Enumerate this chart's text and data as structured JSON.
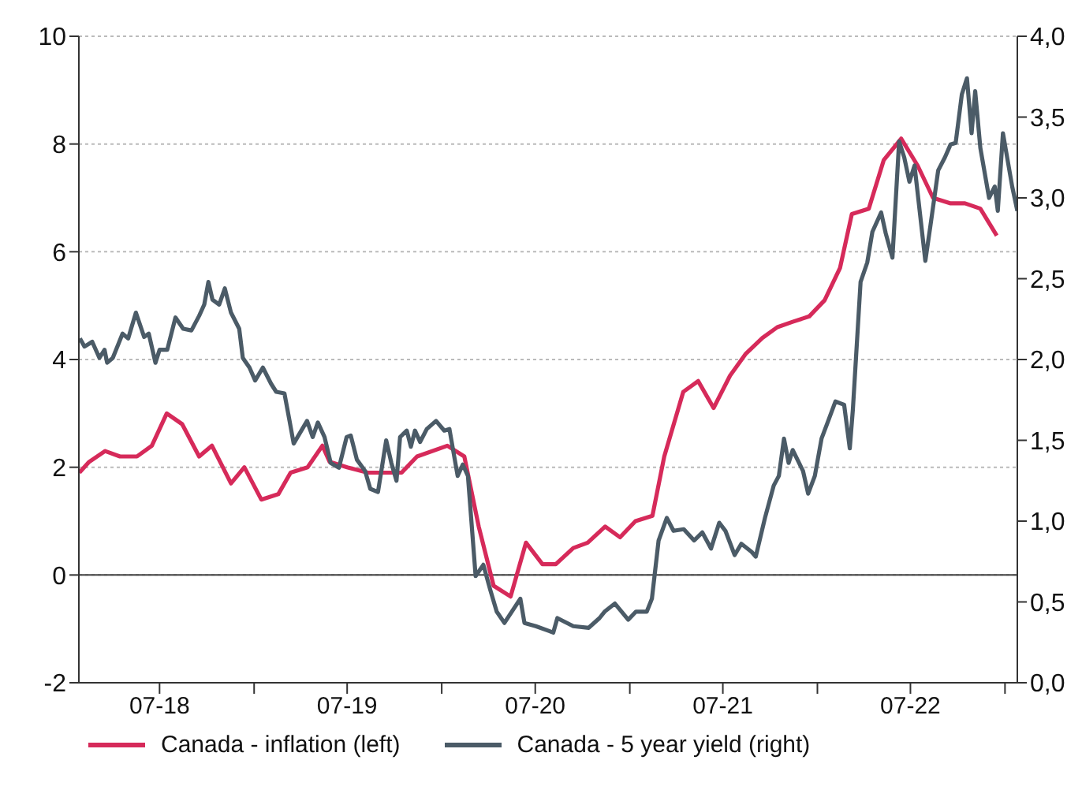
{
  "chart_data": {
    "type": "line",
    "xlim": [
      "2018-01-25",
      "2023-01-25"
    ],
    "xticks": [
      {
        "value": "2018-07-01",
        "label": "07-18"
      },
      {
        "value": "2019-01-01",
        "label": null
      },
      {
        "value": "2019-07-01",
        "label": "07-19"
      },
      {
        "value": "2020-01-01",
        "label": null
      },
      {
        "value": "2020-07-01",
        "label": "07-20"
      },
      {
        "value": "2021-01-01",
        "label": null
      },
      {
        "value": "2021-07-01",
        "label": "07-21"
      },
      {
        "value": "2022-01-01",
        "label": null
      },
      {
        "value": "2022-07-01",
        "label": "07-22"
      },
      {
        "value": "2023-01-01",
        "label": null
      }
    ],
    "ylim": [
      -2,
      10
    ],
    "yticks": [
      -2,
      0,
      2,
      4,
      6,
      8,
      10
    ],
    "y2lim": [
      0,
      4
    ],
    "y2ticks": [
      {
        "value": 0,
        "label": "0,0"
      },
      {
        "value": 0.5,
        "label": "0,5"
      },
      {
        "value": 1,
        "label": "1,0"
      },
      {
        "value": 1.5,
        "label": "1,5"
      },
      {
        "value": 2,
        "label": "2,0"
      },
      {
        "value": 2.5,
        "label": "2,5"
      },
      {
        "value": 3,
        "label": "3,0"
      },
      {
        "value": 3.5,
        "label": "3,5"
      },
      {
        "value": 4,
        "label": "4,0"
      }
    ],
    "grid": "y",
    "legend": "bottom",
    "marker": "none",
    "line_style": "solid",
    "ref_lines": [
      {
        "axis": "y",
        "value": 0,
        "color": "#404040"
      }
    ],
    "series": [
      {
        "name": "Canada - inflation (left)",
        "color": "#d62a5a",
        "x": [
          "2018-01-26",
          "2018-02-14",
          "2018-03-17",
          "2018-04-15",
          "2018-05-18",
          "2018-06-16",
          "2018-07-15",
          "2018-08-14",
          "2018-09-16",
          "2018-10-11",
          "2018-11-17",
          "2018-12-13",
          "2019-01-15",
          "2019-02-17",
          "2019-03-13",
          "2019-04-15",
          "2019-05-14",
          "2019-05-28",
          "2019-07-01",
          "2019-08-10",
          "2019-09-20",
          "2019-10-15",
          "2019-11-14",
          "2020-01-12",
          "2020-02-14",
          "2020-03-13",
          "2020-04-11",
          "2020-05-14",
          "2020-06-13",
          "2020-07-15",
          "2020-08-10",
          "2020-09-13",
          "2020-10-11",
          "2020-11-14",
          "2020-12-13",
          "2021-01-12",
          "2021-02-14",
          "2021-03-09",
          "2021-04-15",
          "2021-05-14",
          "2021-06-13",
          "2021-07-15",
          "2021-08-14",
          "2021-09-16",
          "2021-10-15",
          "2021-11-14",
          "2021-12-16",
          "2022-01-15",
          "2022-02-14",
          "2022-03-09",
          "2022-04-11",
          "2022-05-10",
          "2022-06-13",
          "2022-07-15",
          "2022-08-14",
          "2022-09-16",
          "2022-10-15",
          "2022-11-14",
          "2022-12-16"
        ],
        "values": [
          1.9,
          2.1,
          2.3,
          2.2,
          2.2,
          2.4,
          3.0,
          2.8,
          2.2,
          2.4,
          1.7,
          2.0,
          1.4,
          1.5,
          1.9,
          2.0,
          2.4,
          2.1,
          2.0,
          1.9,
          1.9,
          1.9,
          2.2,
          2.4,
          2.2,
          0.9,
          -0.2,
          -0.4,
          0.6,
          0.2,
          0.2,
          0.5,
          0.6,
          0.9,
          0.7,
          1.0,
          1.1,
          2.2,
          3.4,
          3.6,
          3.1,
          3.7,
          4.1,
          4.4,
          4.6,
          4.7,
          4.8,
          5.1,
          5.7,
          6.7,
          6.8,
          7.7,
          8.1,
          7.6,
          7.0,
          6.9,
          6.9,
          6.8,
          6.3
        ]
      },
      {
        "name": "Canada - 5 year yield (right)",
        "color": "#4b5b67",
        "axis": "y2",
        "x": [
          "2018-01-27",
          "2018-02-05",
          "2018-02-20",
          "2018-03-06",
          "2018-03-16",
          "2018-03-21",
          "2018-04-01",
          "2018-04-20",
          "2018-05-01",
          "2018-05-16",
          "2018-06-01",
          "2018-06-10",
          "2018-06-23",
          "2018-07-01",
          "2018-07-16",
          "2018-08-01",
          "2018-08-16",
          "2018-09-01",
          "2018-09-16",
          "2018-09-26",
          "2018-10-04",
          "2018-10-12",
          "2018-10-25",
          "2018-11-05",
          "2018-11-17",
          "2018-12-03",
          "2018-12-10",
          "2018-12-23",
          "2019-01-03",
          "2019-01-18",
          "2019-02-03",
          "2019-02-13",
          "2019-03-01",
          "2019-03-11",
          "2019-03-19",
          "2019-04-14",
          "2019-04-25",
          "2019-05-05",
          "2019-05-18",
          "2019-05-30",
          "2019-06-15",
          "2019-06-30",
          "2019-07-08",
          "2019-07-20",
          "2019-08-05",
          "2019-08-15",
          "2019-08-30",
          "2019-09-15",
          "2019-09-25",
          "2019-10-05",
          "2019-10-12",
          "2019-10-25",
          "2019-11-02",
          "2019-11-10",
          "2019-11-20",
          "2019-12-03",
          "2019-12-21",
          "2020-01-06",
          "2020-01-16",
          "2020-02-01",
          "2020-02-11",
          "2020-02-21",
          "2020-03-07",
          "2020-03-22",
          "2020-04-04",
          "2020-04-17",
          "2020-05-02",
          "2020-06-02",
          "2020-06-10",
          "2020-07-02",
          "2020-07-28",
          "2020-08-05",
          "2020-08-13",
          "2020-09-13",
          "2020-10-13",
          "2020-11-03",
          "2020-11-13",
          "2020-12-03",
          "2020-12-29",
          "2021-01-13",
          "2021-02-03",
          "2021-02-13",
          "2021-02-26",
          "2021-03-14",
          "2021-03-27",
          "2021-04-16",
          "2021-05-06",
          "2021-05-22",
          "2021-06-08",
          "2021-06-24",
          "2021-07-06",
          "2021-07-24",
          "2021-08-06",
          "2021-08-26",
          "2021-09-03",
          "2021-09-21",
          "2021-10-08",
          "2021-10-18",
          "2021-10-28",
          "2021-11-06",
          "2021-11-14",
          "2021-12-04",
          "2021-12-14",
          "2021-12-27",
          "2022-01-09",
          "2022-01-22",
          "2022-02-05",
          "2022-02-22",
          "2022-03-05",
          "2022-03-11",
          "2022-03-26",
          "2022-04-08",
          "2022-04-18",
          "2022-05-05",
          "2022-05-14",
          "2022-05-27",
          "2022-06-09",
          "2022-06-19",
          "2022-06-29",
          "2022-07-09",
          "2022-07-30",
          "2022-08-09",
          "2022-08-24",
          "2022-09-06",
          "2022-09-17",
          "2022-09-27",
          "2022-10-09",
          "2022-10-19",
          "2022-10-28",
          "2022-11-04",
          "2022-11-14",
          "2022-12-01",
          "2022-12-12",
          "2022-12-18",
          "2022-12-28",
          "2023-01-15",
          "2023-01-25"
        ],
        "values": [
          2.13,
          2.08,
          2.11,
          2.01,
          2.06,
          1.98,
          2.01,
          2.16,
          2.13,
          2.29,
          2.14,
          2.16,
          1.98,
          2.06,
          2.06,
          2.26,
          2.19,
          2.18,
          2.27,
          2.34,
          2.48,
          2.37,
          2.34,
          2.44,
          2.29,
          2.19,
          2.01,
          1.95,
          1.87,
          1.95,
          1.85,
          1.8,
          1.79,
          1.62,
          1.48,
          1.62,
          1.52,
          1.61,
          1.52,
          1.36,
          1.33,
          1.52,
          1.53,
          1.38,
          1.31,
          1.2,
          1.18,
          1.5,
          1.36,
          1.25,
          1.52,
          1.56,
          1.46,
          1.56,
          1.49,
          1.57,
          1.62,
          1.56,
          1.57,
          1.28,
          1.35,
          1.28,
          0.66,
          0.73,
          0.58,
          0.44,
          0.37,
          0.52,
          0.37,
          0.35,
          0.32,
          0.31,
          0.4,
          0.35,
          0.34,
          0.4,
          0.44,
          0.49,
          0.39,
          0.44,
          0.44,
          0.52,
          0.88,
          1.02,
          0.94,
          0.95,
          0.88,
          0.93,
          0.83,
          0.99,
          0.94,
          0.79,
          0.86,
          0.81,
          0.78,
          1.02,
          1.22,
          1.28,
          1.51,
          1.36,
          1.44,
          1.31,
          1.17,
          1.28,
          1.51,
          1.62,
          1.74,
          1.72,
          1.45,
          1.69,
          2.48,
          2.6,
          2.79,
          2.91,
          2.78,
          2.63,
          3.35,
          3.25,
          3.1,
          3.2,
          2.61,
          2.83,
          3.17,
          3.25,
          3.33,
          3.34,
          3.64,
          3.74,
          3.4,
          3.66,
          3.31,
          3.0,
          3.07,
          2.92,
          3.4,
          3.07,
          2.92
        ]
      }
    ]
  }
}
